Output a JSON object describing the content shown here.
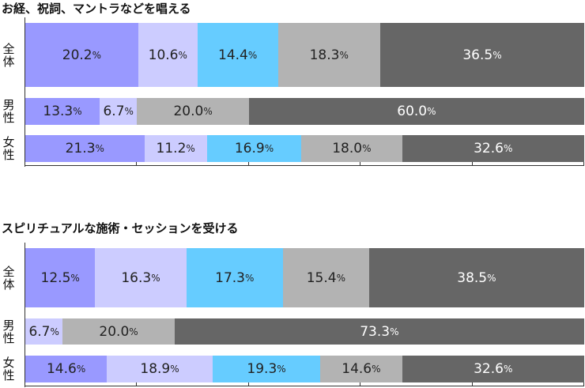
{
  "colors": {
    "seg1": "#9999ff",
    "seg2": "#ccccff",
    "seg3": "#66ccff",
    "seg4": "#b3b3b3",
    "seg5": "#666666",
    "dark_text": "#222222",
    "light_text": "#ffffff"
  },
  "charts": [
    {
      "title": "お経、祝詞、マントラなどを唱える",
      "rows": [
        {
          "label": "全体",
          "values": [
            20.2,
            10.6,
            14.4,
            18.3,
            36.5
          ],
          "labels": [
            "20.2",
            "10.6",
            "14.4",
            "18.3",
            "36.5"
          ]
        },
        {
          "label": "男性",
          "values": [
            13.3,
            6.7,
            0,
            20.0,
            60.0
          ],
          "labels": [
            "13.3",
            "6.7",
            "",
            "20.0",
            "60.0"
          ]
        },
        {
          "label": "女性",
          "values": [
            21.3,
            11.2,
            16.9,
            18.0,
            32.6
          ],
          "labels": [
            "21.3",
            "11.2",
            "16.9",
            "18.0",
            "32.6"
          ]
        }
      ]
    },
    {
      "title": "スピリチュアルな施術・セッションを受ける",
      "rows": [
        {
          "label": "全体",
          "values": [
            12.5,
            16.3,
            17.3,
            15.4,
            38.5
          ],
          "labels": [
            "12.5",
            "16.3",
            "17.3",
            "15.4",
            "38.5"
          ]
        },
        {
          "label": "男性",
          "values": [
            0,
            6.7,
            0,
            20.0,
            73.3
          ],
          "labels": [
            "",
            "6.7",
            "",
            "20.0",
            "73.3"
          ]
        },
        {
          "label": "女性",
          "values": [
            14.6,
            18.9,
            19.3,
            14.6,
            32.6
          ],
          "labels": [
            "14.6",
            "18.9",
            "19.3",
            "14.6",
            "32.6"
          ]
        }
      ]
    }
  ],
  "unit": "%",
  "chart_data": [
    {
      "type": "bar",
      "stacked": true,
      "orientation": "horizontal",
      "title": "お経、祝詞、マントラなどを唱える",
      "categories": [
        "全体",
        "男性",
        "女性"
      ],
      "series": [
        {
          "values": [
            20.2,
            13.3,
            21.3
          ]
        },
        {
          "values": [
            10.6,
            6.7,
            11.2
          ]
        },
        {
          "values": [
            14.4,
            0,
            16.9
          ]
        },
        {
          "values": [
            18.3,
            20.0,
            18.0
          ]
        },
        {
          "values": [
            36.5,
            60.0,
            32.6
          ]
        }
      ],
      "xlim": [
        0,
        100
      ],
      "unit": "%"
    },
    {
      "type": "bar",
      "stacked": true,
      "orientation": "horizontal",
      "title": "スピリチュアルな施術・セッションを受ける",
      "categories": [
        "全体",
        "男性",
        "女性"
      ],
      "series": [
        {
          "values": [
            12.5,
            0,
            14.6
          ]
        },
        {
          "values": [
            16.3,
            6.7,
            18.9
          ]
        },
        {
          "values": [
            17.3,
            0,
            19.3
          ]
        },
        {
          "values": [
            15.4,
            20.0,
            14.6
          ]
        },
        {
          "values": [
            38.5,
            73.3,
            32.6
          ]
        }
      ],
      "xlim": [
        0,
        100
      ],
      "unit": "%"
    }
  ]
}
